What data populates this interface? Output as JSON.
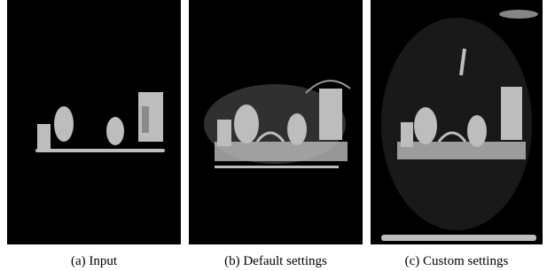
{
  "figure": {
    "panels": [
      {
        "caption": "(a) Input"
      },
      {
        "caption": "(b) Default settings"
      },
      {
        "caption": "(c) Custom settings"
      }
    ]
  }
}
